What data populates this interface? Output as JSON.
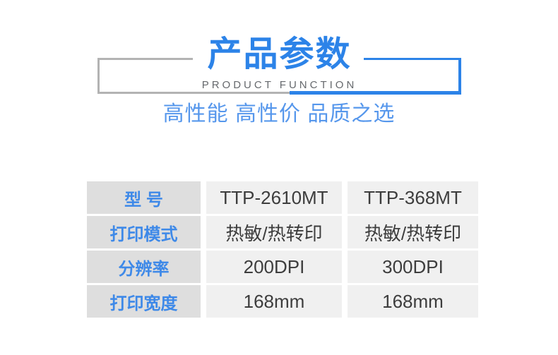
{
  "header": {
    "title": "产品参数",
    "subtitle_en": "PRODUCT FUNCTION",
    "tagline": "高性能 高性价 品质之选"
  },
  "spec_table": {
    "rows": [
      {
        "label": "型 号",
        "values": [
          "TTP-2610MT",
          "TTP-368MT"
        ]
      },
      {
        "label": "打印模式",
        "values": [
          "热敏/热转印",
          "热敏/热转印"
        ]
      },
      {
        "label": "分辨率",
        "values": [
          "200DPI",
          "300DPI"
        ]
      },
      {
        "label": "打印宽度",
        "values": [
          "168mm",
          "168mm"
        ]
      }
    ]
  },
  "colors": {
    "accent_blue": "#2c83e8",
    "label_blue": "#3e89e8",
    "tagline_blue": "#5697ec",
    "frame_grey": "#b3b3b3",
    "subtitle_grey": "#66696d",
    "label_cell_bg": "#dedede",
    "value_cell_bg": "#f0f0f0",
    "value_text": "#3d3d3d"
  }
}
